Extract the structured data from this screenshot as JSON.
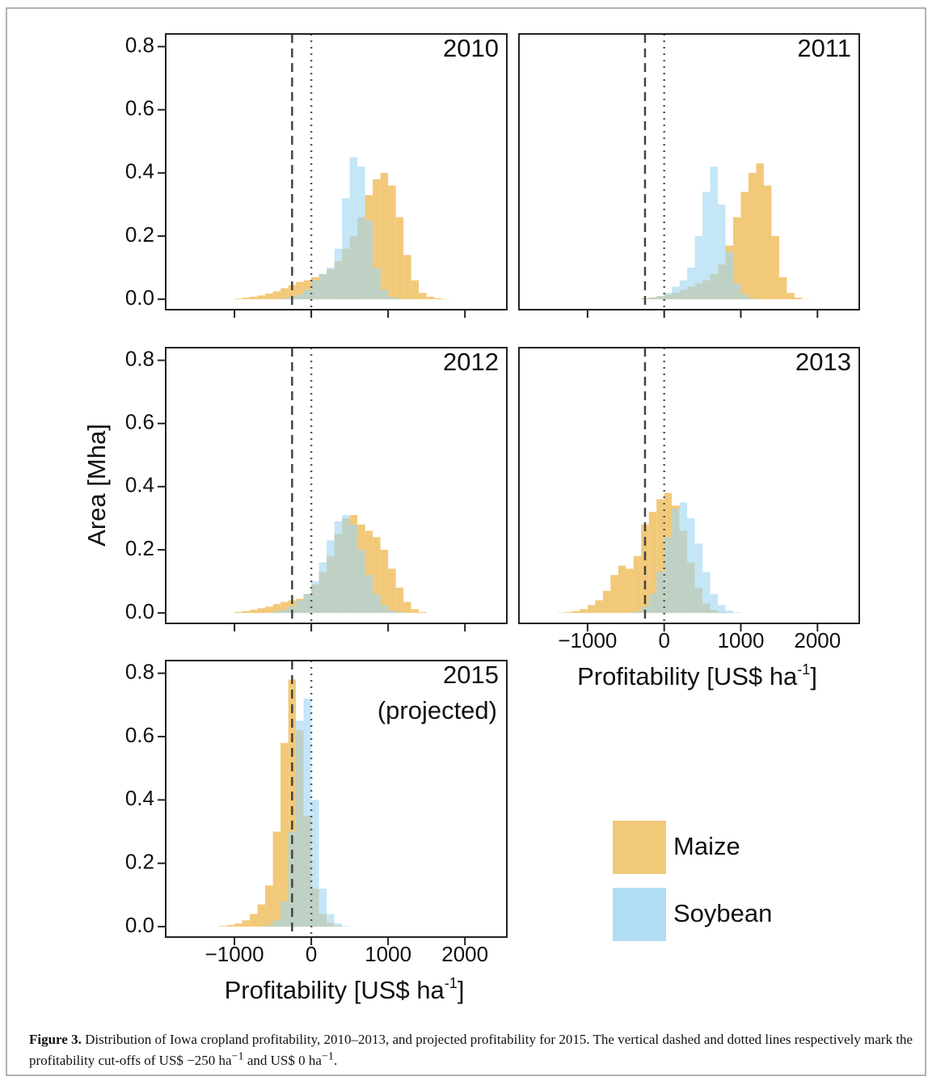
{
  "chart_data": [
    {
      "type": "histogram",
      "title": "2010",
      "bins": [
        -1500,
        -1400,
        -1300,
        -1200,
        -1100,
        -1000,
        -900,
        -800,
        -700,
        -600,
        -500,
        -400,
        -300,
        -200,
        -100,
        0,
        100,
        200,
        300,
        400,
        500,
        600,
        700,
        800,
        900,
        1000,
        1100,
        1200,
        1300,
        1400,
        1500,
        1600,
        1700,
        1800,
        1900,
        2000
      ],
      "series": [
        {
          "name": "Maize",
          "color": "#f1c46e",
          "values": [
            0,
            0,
            0,
            0,
            0,
            0.002,
            0.005,
            0.008,
            0.012,
            0.018,
            0.025,
            0.035,
            0.045,
            0.055,
            0.06,
            0.07,
            0.08,
            0.095,
            0.12,
            0.16,
            0.2,
            0.26,
            0.33,
            0.38,
            0.4,
            0.36,
            0.26,
            0.14,
            0.06,
            0.02,
            0.008,
            0.003,
            0.001,
            0,
            0
          ]
        },
        {
          "name": "Soybean",
          "color": "#9fd6f2",
          "values": [
            0,
            0,
            0,
            0,
            0,
            0,
            0,
            0,
            0,
            0,
            0,
            0.003,
            0.008,
            0.015,
            0.03,
            0.06,
            0.08,
            0.1,
            0.16,
            0.32,
            0.45,
            0.42,
            0.25,
            0.1,
            0.03,
            0.008,
            0.002,
            0,
            0,
            0,
            0,
            0,
            0,
            0,
            0
          ]
        }
      ],
      "xlim": [
        -1895,
        2545
      ],
      "ylim": [
        -0.033,
        0.84
      ],
      "xticks": [
        -1000,
        0,
        1000,
        2000
      ],
      "yticks": [
        {
          "value": 0,
          "label": "0.0"
        },
        0.2,
        0.4,
        0.6,
        0.8
      ],
      "cutoffs": [
        -250,
        0
      ],
      "cutoff_styles": [
        "dashed",
        "dotted"
      ]
    },
    {
      "type": "histogram",
      "title": "2011",
      "bins": [
        -1500,
        -1400,
        -1300,
        -1200,
        -1100,
        -1000,
        -900,
        -800,
        -700,
        -600,
        -500,
        -400,
        -300,
        -200,
        -100,
        0,
        100,
        200,
        300,
        400,
        500,
        600,
        700,
        800,
        900,
        1000,
        1100,
        1200,
        1300,
        1400,
        1500,
        1600,
        1700,
        1800,
        1900,
        2000
      ],
      "series": [
        {
          "name": "Maize",
          "color": "#f1c46e",
          "values": [
            0,
            0,
            0,
            0,
            0,
            0,
            0,
            0,
            0,
            0,
            0,
            0,
            0.003,
            0.006,
            0.01,
            0.015,
            0.02,
            0.03,
            0.04,
            0.05,
            0.06,
            0.08,
            0.11,
            0.17,
            0.26,
            0.34,
            0.4,
            0.43,
            0.36,
            0.2,
            0.07,
            0.02,
            0.005,
            0.001,
            0
          ]
        },
        {
          "name": "Soybean",
          "color": "#9fd6f2",
          "values": [
            0,
            0,
            0,
            0,
            0,
            0,
            0,
            0,
            0,
            0,
            0,
            0,
            0,
            0.005,
            0.01,
            0.02,
            0.04,
            0.06,
            0.1,
            0.2,
            0.34,
            0.42,
            0.3,
            0.15,
            0.05,
            0.015,
            0.003,
            0,
            0,
            0,
            0,
            0,
            0,
            0,
            0
          ]
        }
      ],
      "xlim": [
        -1895,
        2545
      ],
      "ylim": [
        -0.033,
        0.84
      ],
      "xticks": [
        -1000,
        0,
        1000,
        2000
      ],
      "cutoffs": [
        -250,
        0
      ],
      "cutoff_styles": [
        "dashed",
        "dotted"
      ]
    },
    {
      "type": "histogram",
      "title": "2012",
      "ylabel": "Area [Mha]",
      "bins": [
        -1500,
        -1400,
        -1300,
        -1200,
        -1100,
        -1000,
        -900,
        -800,
        -700,
        -600,
        -500,
        -400,
        -300,
        -200,
        -100,
        0,
        100,
        200,
        300,
        400,
        500,
        600,
        700,
        800,
        900,
        1000,
        1100,
        1200,
        1300,
        1400,
        1500,
        1600,
        1700,
        1800,
        1900,
        2000
      ],
      "series": [
        {
          "name": "Maize",
          "color": "#f1c46e",
          "values": [
            0,
            0,
            0,
            0,
            0,
            0.003,
            0.006,
            0.01,
            0.015,
            0.02,
            0.028,
            0.035,
            0.04,
            0.045,
            0.06,
            0.09,
            0.13,
            0.18,
            0.25,
            0.3,
            0.31,
            0.28,
            0.26,
            0.24,
            0.2,
            0.14,
            0.08,
            0.035,
            0.012,
            0.003,
            0,
            0,
            0,
            0,
            0
          ]
        },
        {
          "name": "Soybean",
          "color": "#9fd6f2",
          "values": [
            0,
            0,
            0,
            0,
            0,
            0,
            0,
            0,
            0,
            0,
            0.005,
            0.01,
            0.02,
            0.04,
            0.06,
            0.1,
            0.16,
            0.23,
            0.29,
            0.31,
            0.28,
            0.2,
            0.12,
            0.06,
            0.025,
            0.008,
            0.002,
            0,
            0,
            0,
            0,
            0,
            0,
            0,
            0
          ]
        }
      ],
      "xlim": [
        -1895,
        2545
      ],
      "ylim": [
        -0.033,
        0.84
      ],
      "xticks": [
        -1000,
        0,
        1000,
        2000
      ],
      "yticks": [
        {
          "value": 0,
          "label": "0.0"
        },
        0.2,
        0.4,
        0.6,
        0.8
      ],
      "cutoffs": [
        -250,
        0
      ],
      "cutoff_styles": [
        "dashed",
        "dotted"
      ]
    },
    {
      "type": "histogram",
      "title": "2013",
      "xlabel": {
        "text": "Profitability [US$ ha",
        "sup": "-1",
        "end": "]"
      },
      "bins": [
        -1500,
        -1400,
        -1300,
        -1200,
        -1100,
        -1000,
        -900,
        -800,
        -700,
        -600,
        -500,
        -400,
        -300,
        -200,
        -100,
        0,
        100,
        200,
        300,
        400,
        500,
        600,
        700,
        800,
        900,
        1000,
        1100,
        1200,
        1300,
        1400,
        1500,
        1600,
        1700,
        1800,
        1900,
        2000
      ],
      "series": [
        {
          "name": "Maize",
          "color": "#f1c46e",
          "values": [
            0,
            0.001,
            0.003,
            0.006,
            0.012,
            0.025,
            0.04,
            0.07,
            0.12,
            0.15,
            0.14,
            0.18,
            0.28,
            0.32,
            0.36,
            0.38,
            0.34,
            0.26,
            0.16,
            0.08,
            0.03,
            0.01,
            0.003,
            0.001,
            0,
            0,
            0,
            0,
            0,
            0,
            0,
            0,
            0,
            0,
            0
          ]
        },
        {
          "name": "Soybean",
          "color": "#9fd6f2",
          "values": [
            0,
            0,
            0,
            0,
            0,
            0,
            0,
            0,
            0,
            0,
            0,
            0.005,
            0.02,
            0.06,
            0.13,
            0.24,
            0.33,
            0.35,
            0.3,
            0.22,
            0.13,
            0.06,
            0.025,
            0.008,
            0.002,
            0,
            0,
            0,
            0,
            0,
            0,
            0,
            0,
            0,
            0
          ]
        }
      ],
      "xlim": [
        -1895,
        2545
      ],
      "ylim": [
        -0.033,
        0.84
      ],
      "xticks": [
        {
          "value": -1000,
          "label": "−1000"
        },
        0,
        1000,
        2000
      ],
      "xtick_labels": true,
      "cutoffs": [
        -250,
        0
      ],
      "cutoff_styles": [
        "dashed",
        "dotted"
      ]
    },
    {
      "type": "histogram",
      "title": "2015",
      "subtitle": "(projected)",
      "xlabel": {
        "text": "Profitability [US$ ha",
        "sup": "-1",
        "end": "]"
      },
      "bins": [
        -1500,
        -1400,
        -1300,
        -1200,
        -1100,
        -1000,
        -900,
        -800,
        -700,
        -600,
        -500,
        -400,
        -300,
        -200,
        -100,
        0,
        100,
        200,
        300,
        400,
        500,
        600,
        700,
        800,
        900,
        1000,
        1100,
        1200,
        1300,
        1400,
        1500,
        1600,
        1700,
        1800,
        1900,
        2000
      ],
      "series": [
        {
          "name": "Maize",
          "color": "#f1c46e",
          "values": [
            0,
            0,
            0,
            0.002,
            0.005,
            0.01,
            0.02,
            0.04,
            0.07,
            0.13,
            0.3,
            0.58,
            0.78,
            0.62,
            0.35,
            0.12,
            0.04,
            0.012,
            0.003,
            0,
            0,
            0,
            0,
            0,
            0,
            0,
            0,
            0,
            0,
            0,
            0,
            0,
            0,
            0,
            0
          ]
        },
        {
          "name": "Soybean",
          "color": "#9fd6f2",
          "values": [
            0,
            0,
            0,
            0,
            0,
            0,
            0,
            0,
            0,
            0.005,
            0.02,
            0.08,
            0.3,
            0.65,
            0.72,
            0.4,
            0.12,
            0.04,
            0.01,
            0.002,
            0,
            0,
            0,
            0,
            0,
            0,
            0,
            0,
            0,
            0,
            0,
            0,
            0,
            0,
            0
          ]
        }
      ],
      "xlim": [
        -1895,
        2545
      ],
      "ylim": [
        -0.033,
        0.84
      ],
      "xticks": [
        {
          "value": -1000,
          "label": "−1000"
        },
        0,
        1000,
        2000
      ],
      "xtick_labels": true,
      "yticks": [
        {
          "value": 0,
          "label": "0.0"
        },
        0.2,
        0.4,
        0.6,
        0.8
      ],
      "cutoffs": [
        -250,
        0
      ],
      "cutoff_styles": [
        "dashed",
        "dotted"
      ]
    }
  ],
  "caption": {
    "label": "Figure 3.",
    "segments": [
      "Distribution of Iowa cropland profitability, 2010–2013, and projected profitability for 2015. The vertical dashed and dotted lines respectively mark the profitability cut-offs of US$ −250 ha",
      "−1",
      " and US$ 0 ha",
      "−1",
      "."
    ]
  }
}
